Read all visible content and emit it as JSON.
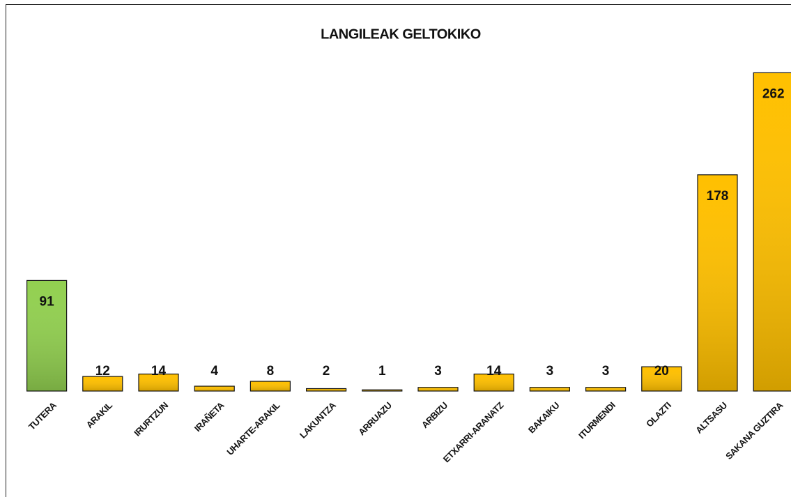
{
  "chart_data": {
    "type": "bar",
    "title": "LANGILEAK GELTOKIKO",
    "categories": [
      "TUTERA",
      "ARAKIL",
      "IRURTZUN",
      "IRAÑETA",
      "UHARTE-ARAKIL",
      "LAKUNTZA",
      "ARRUAZU",
      "ARBIZU",
      "ETXARRI-ARANATZ",
      "BAKAIKU",
      "ITURMENDI",
      "OLAZTI",
      "ALTSASU",
      "SAKANA GUZTIRA"
    ],
    "values": [
      91,
      12,
      14,
      4,
      8,
      2,
      1,
      3,
      14,
      3,
      3,
      20,
      178,
      262
    ],
    "colors": [
      "#92d050",
      "#ffc000",
      "#ffc000",
      "#ffc000",
      "#ffc000",
      "#ffc000",
      "#ffc000",
      "#ffc000",
      "#ffc000",
      "#ffc000",
      "#ffc000",
      "#ffc000",
      "#ffc000",
      "#ffc000"
    ],
    "ylim": [
      0,
      280
    ]
  }
}
